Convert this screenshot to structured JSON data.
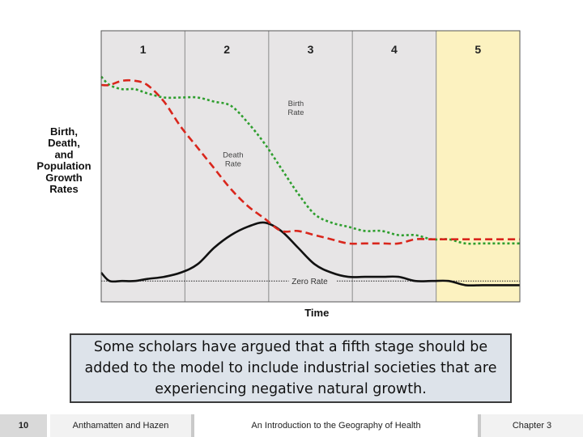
{
  "chart_data": {
    "type": "line",
    "ylabel_lines": [
      "Birth,",
      "Death,",
      "and",
      "Population",
      "Growth",
      "Rates"
    ],
    "xlabel": "Time",
    "stages": [
      "1",
      "2",
      "3",
      "4",
      "5"
    ],
    "highlighted_stage": "5",
    "zero_label": "Zero Rate",
    "x": [
      0,
      0.02,
      0.05,
      0.08,
      0.11,
      0.15,
      0.19,
      0.23,
      0.27,
      0.31,
      0.35,
      0.39,
      0.43,
      0.47,
      0.51,
      0.55,
      0.59,
      0.63,
      0.67,
      0.71,
      0.75,
      0.79,
      0.83,
      0.87,
      0.91,
      0.95,
      1.0
    ],
    "series": [
      {
        "name": "Birth Rate",
        "color": "#2e9e2e",
        "style": "dotted",
        "values": [
          49,
          47,
          46,
          46,
          45,
          44,
          44,
          44,
          43,
          42,
          38,
          33,
          27,
          21,
          16,
          14,
          13,
          12,
          12,
          11,
          11,
          10,
          10,
          9,
          9,
          9,
          9
        ]
      },
      {
        "name": "Death Rate",
        "color": "#d9261c",
        "style": "dashed",
        "values": [
          47,
          47,
          48,
          48,
          47,
          43,
          37,
          32,
          27,
          22,
          18,
          15,
          12,
          12,
          11,
          10,
          9,
          9,
          9,
          9,
          10,
          10,
          10,
          10,
          10,
          10,
          10
        ]
      },
      {
        "name": "Population Growth",
        "color": "#111111",
        "style": "solid",
        "values": [
          2,
          0,
          0,
          0,
          0.5,
          1,
          2,
          4,
          8,
          11,
          13,
          14,
          12,
          8,
          4,
          2,
          1,
          1,
          1,
          1,
          0,
          0,
          0,
          -1,
          -1,
          -1,
          -1
        ]
      }
    ],
    "ylim": [
      -5,
      60
    ]
  },
  "callout_text": "Some scholars have argued that a fifth stage should be added to the model to include industrial societies that are experiencing negative natural growth.",
  "footer": {
    "page_number": "10",
    "authors": "Anthamatten and Hazen",
    "book_title": "An Introduction to the Geography of Health",
    "chapter": "Chapter 3"
  }
}
